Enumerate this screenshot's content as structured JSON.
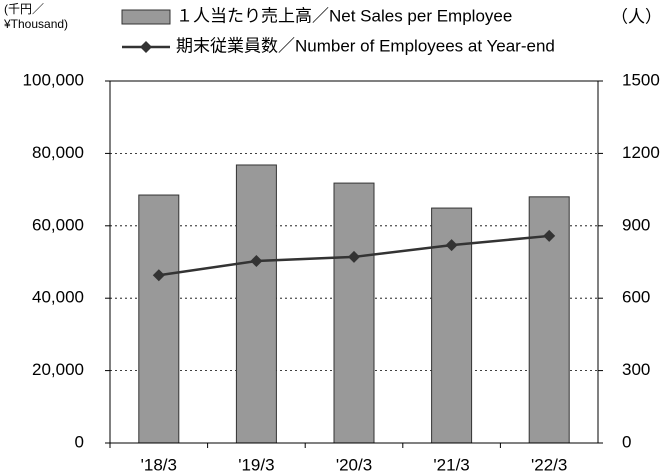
{
  "chart_data": {
    "type": "bar_line",
    "ylabel": [
      "(千円／",
      "¥Thousand)"
    ],
    "y2label": "（人）",
    "categories": [
      "'18/3",
      "'19/3",
      "'20/3",
      "'21/3",
      "'22/3"
    ],
    "series": [
      {
        "name": "１人当たり売上高／Net Sales per Employee",
        "type": "bar",
        "color": "#999999",
        "values": [
          68500,
          76800,
          71800,
          64900,
          68000
        ]
      },
      {
        "name": "期末従業員数／Number of Employees at Year-end",
        "type": "line",
        "color": "#333333",
        "axis": "y2",
        "values": [
          695,
          754,
          771,
          820,
          858
        ]
      }
    ],
    "ylim": [
      0,
      100000
    ],
    "yticks": [
      0,
      {
        "value": 20000,
        "label": "20,000"
      },
      {
        "value": 40000,
        "label": "40,000"
      },
      {
        "value": 60000,
        "label": "60,000"
      },
      {
        "value": 80000,
        "label": "80,000"
      },
      {
        "value": 100000,
        "label": "100,000"
      }
    ],
    "y2lim": [
      0,
      1500
    ],
    "y2ticks": [
      0,
      300,
      600,
      900,
      1200,
      1500
    ],
    "grid": true
  }
}
